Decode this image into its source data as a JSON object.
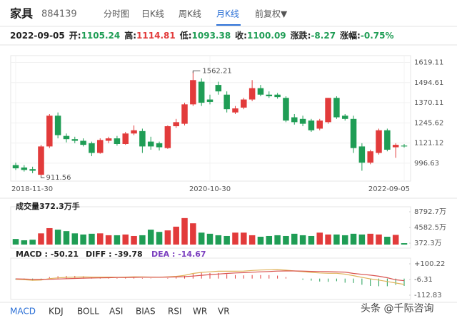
{
  "header": {
    "name": "家具",
    "code": "884139",
    "tabs": [
      "分时图",
      "日K线",
      "周K线",
      "月K线",
      "前复权▼"
    ],
    "active_tab": 3
  },
  "info": {
    "date": "2022-09-05",
    "items": [
      {
        "label": "开:",
        "value": 1105.24,
        "color": "#1f9d55"
      },
      {
        "label": "高:",
        "value": 1114.81,
        "color": "#e23b3b"
      },
      {
        "label": "低:",
        "value": 1093.38,
        "color": "#1f9d55"
      },
      {
        "label": "收:",
        "value": 1100.09,
        "color": "#1f9d55"
      },
      {
        "label": "涨跌:",
        "value": -8.27,
        "color": "#1f9d55"
      },
      {
        "label": "涨幅:",
        "value": -0.75,
        "value_label": "-0.75%",
        "color": "#1f9d55"
      }
    ]
  },
  "chart_data": [
    {
      "type": "candlestick",
      "categories": [
        "2018-11-30",
        null,
        null,
        null,
        null,
        null,
        null,
        null,
        null,
        null,
        null,
        null,
        null,
        null,
        null,
        null,
        null,
        null,
        null,
        null,
        null,
        null,
        null,
        "2020-10-30",
        null,
        null,
        null,
        null,
        null,
        null,
        null,
        null,
        null,
        null,
        null,
        null,
        null,
        null,
        null,
        null,
        null,
        null,
        null,
        null,
        null,
        null,
        "2022-09-05"
      ],
      "open": [
        985,
        970,
        960,
        925,
        1100,
        1290,
        1165,
        1145,
        1135,
        1120,
        1060,
        1135,
        1150,
        1115,
        1180,
        1195,
        1130,
        1120,
        1090,
        1225,
        1240,
        1360,
        1500,
        1390,
        1480,
        1420,
        1310,
        1340,
        1390,
        1460,
        1420,
        1420,
        1400,
        1280,
        1270,
        1260,
        1210,
        1250,
        1400,
        1290,
        1270,
        1100,
        1000,
        1060,
        1200,
        1095,
        1105.24
      ],
      "high": [
        1000,
        985,
        975,
        1110,
        1300,
        1310,
        1180,
        1160,
        1150,
        1130,
        1150,
        1160,
        1165,
        1190,
        1230,
        1210,
        1160,
        1130,
        1230,
        1270,
        1370,
        1562.21,
        1520,
        1420,
        1500,
        1440,
        1350,
        1400,
        1510,
        1480,
        1440,
        1430,
        1410,
        1300,
        1290,
        1270,
        1270,
        1400,
        1410,
        1300,
        1290,
        1120,
        1080,
        1210,
        1210,
        1120,
        1114.81
      ],
      "low": [
        955,
        945,
        935,
        911.56,
        1090,
        1150,
        1125,
        1120,
        1100,
        1040,
        1055,
        1120,
        1105,
        1110,
        1170,
        1060,
        1080,
        1075,
        1085,
        1215,
        1230,
        1350,
        1350,
        1360,
        1420,
        1310,
        1300,
        1330,
        1380,
        1410,
        1400,
        1395,
        1250,
        1235,
        1225,
        1190,
        1200,
        1240,
        1270,
        1260,
        1060,
        950,
        990,
        1050,
        1070,
        1030,
        1093.38
      ],
      "close": [
        965,
        955,
        950,
        1100,
        1290,
        1170,
        1145,
        1135,
        1110,
        1060,
        1140,
        1150,
        1115,
        1180,
        1200,
        1100,
        1100,
        1095,
        1225,
        1250,
        1360,
        1510,
        1370,
        1375,
        1440,
        1330,
        1335,
        1390,
        1460,
        1420,
        1410,
        1405,
        1260,
        1250,
        1240,
        1200,
        1260,
        1400,
        1280,
        1270,
        1090,
        1000,
        1070,
        1200,
        1080,
        1110,
        1100.09
      ],
      "up_color": "#e23b3b",
      "down_color": "#1f9d55",
      "max_label": 1562.21,
      "min_label": 911.56,
      "ylim": [
        886,
        1661
      ],
      "yticks": [
        1619.11,
        1494.61,
        1370.11,
        1245.62,
        1121.12,
        996.63
      ],
      "grid": true
    },
    {
      "type": "bar",
      "title": "成交量372.3万手",
      "values": [
        1500,
        1150,
        1300,
        3000,
        4400,
        4000,
        3600,
        3000,
        2700,
        2900,
        3000,
        2500,
        2500,
        2700,
        2300,
        2500,
        4000,
        3400,
        3800,
        4800,
        7100,
        5700,
        3200,
        2900,
        2500,
        2300,
        3200,
        3200,
        2500,
        2100,
        2300,
        2500,
        2300,
        2900,
        2500,
        2300,
        3200,
        2700,
        2700,
        2500,
        2900,
        2700,
        2900,
        2700,
        2100,
        2600,
        372.3
      ],
      "ylim": [
        0,
        10130
      ],
      "yticks": [
        {
          "value": 8792.7,
          "label": "8792.7万"
        },
        {
          "value": 4582.5,
          "label": "4582.5万"
        },
        {
          "value": 372.3,
          "label": "372.3万"
        }
      ]
    },
    {
      "type": "macd",
      "series": [
        {
          "name": "MACD : -50.21",
          "legend_color": "#222",
          "up_color": "#e23b3b",
          "down_color": "#1f9d55",
          "values": [
            -6,
            -10,
            -14,
            -8,
            10,
            16,
            18,
            18,
            16,
            12,
            10,
            8,
            4,
            6,
            8,
            4,
            2,
            0,
            4,
            8,
            18,
            36,
            40,
            38,
            38,
            30,
            24,
            22,
            24,
            24,
            24,
            20,
            10,
            0,
            -8,
            -14,
            -20,
            -22,
            -18,
            -28,
            -30,
            -42,
            -50,
            -52,
            -52,
            -43.2,
            -50.21
          ]
        },
        {
          "name": "DIFF : -39.78",
          "legend_color": "#222",
          "color": "#e0b45c",
          "values": [
            -5,
            -8,
            -12,
            -10,
            0,
            5,
            8,
            10,
            11,
            10,
            10,
            10,
            9,
            10,
            12,
            11,
            10,
            9,
            12,
            15,
            22,
            35,
            42,
            46,
            50,
            50,
            50,
            51,
            55,
            58,
            60,
            61,
            57,
            52,
            47,
            42,
            38,
            36,
            36,
            30,
            20,
            8,
            -2,
            -10,
            -20,
            -30,
            -39.78
          ]
        },
        {
          "name": "DEA : -14.67",
          "legend_color": "#7b3fbf",
          "color": "#d9534f",
          "values": [
            -2,
            -3,
            -5,
            -6,
            -5,
            -3,
            -1,
            1,
            3,
            4,
            5,
            6,
            7,
            7,
            8,
            9,
            9,
            9,
            10,
            11,
            13,
            17,
            22,
            27,
            31,
            35,
            38,
            40,
            43,
            46,
            48,
            51,
            52,
            52,
            51,
            49,
            48,
            47,
            45,
            44,
            35,
            29,
            23,
            16,
            6,
            -8.4,
            -14.67
          ]
        }
      ],
      "ylim": [
        -142,
        139
      ],
      "yticks": [
        {
          "value": 100.22,
          "label": "+100.22"
        },
        -6.31,
        -112.83
      ]
    }
  ],
  "indicator_tabs": [
    "MACD",
    "KDJ",
    "BOLL",
    "ASI",
    "BIAS",
    "RSI",
    "WR",
    "VR"
  ],
  "active_indicator": 0,
  "watermark": "头条 @千际咨询"
}
